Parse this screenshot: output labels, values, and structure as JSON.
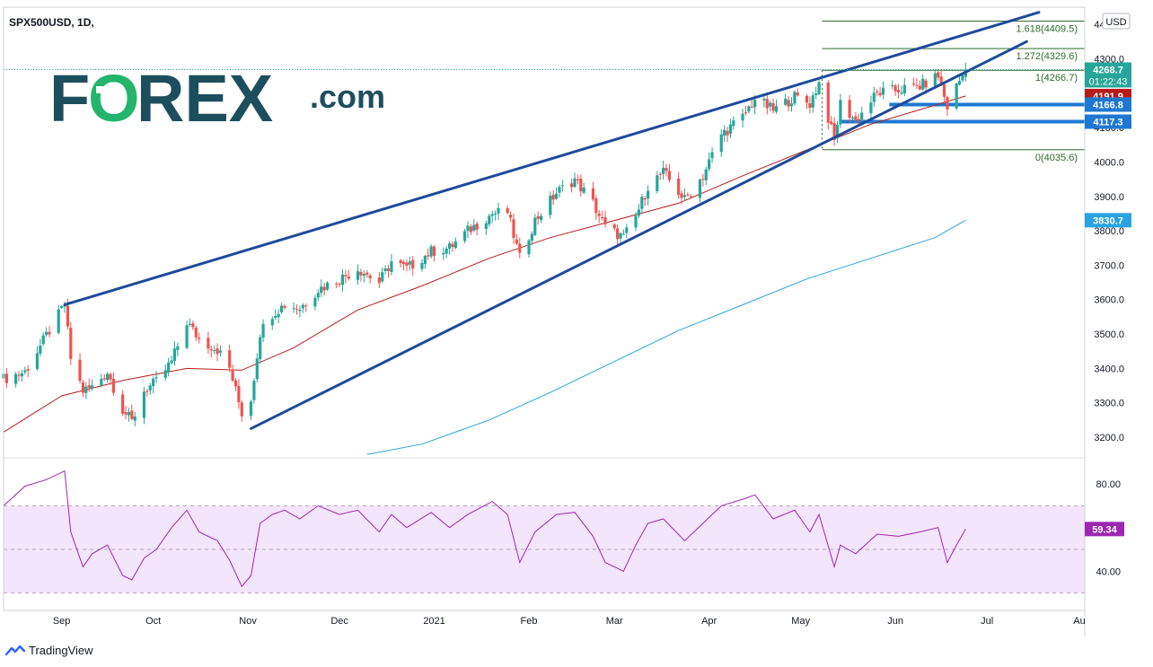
{
  "header": {
    "symbol": "SPX500USD, 1D,",
    "currency": "USD"
  },
  "branding": {
    "logo_prefix": "F",
    "logo_o": "O",
    "logo_suffix": "REX",
    "logo_dotcom": ".com",
    "logo_color": "#1d4e5e",
    "logo_accent": "#23b56d",
    "footer": "TradingView"
  },
  "colors": {
    "up": "#26a69a",
    "down": "#ef5350",
    "ma50": "#b71c1c",
    "ma200": "#29a3e0",
    "channel": "#1e4a9c",
    "fib": "#2e6b2e",
    "hline": "#1e78d2",
    "rsi": "#9c27b0",
    "rsi_band": "#f3e5fb"
  },
  "chart_data": {
    "type": "candlestick",
    "x_labels": [
      {
        "label": "Sep",
        "date": "2020-09-01"
      },
      {
        "label": "Oct",
        "date": "2020-10-01"
      },
      {
        "label": "Nov",
        "date": "2020-11-01"
      },
      {
        "label": "Dec",
        "date": "2020-12-01"
      },
      {
        "label": "2021",
        "date": "2021-01-01"
      },
      {
        "label": "Feb",
        "date": "2021-02-01"
      },
      {
        "label": "Mar",
        "date": "2021-03-01"
      },
      {
        "label": "Apr",
        "date": "2021-04-01"
      },
      {
        "label": "May",
        "date": "2021-05-01"
      },
      {
        "label": "Jun",
        "date": "2021-06-01"
      },
      {
        "label": "Jul",
        "date": "2021-07-01"
      },
      {
        "label": "Au",
        "date": "2021-08-01"
      }
    ],
    "x_range": [
      "2020-08-13",
      "2021-08-02"
    ],
    "price_axis": {
      "ylim": [
        3140,
        4450
      ],
      "ticks": [
        "3200.0",
        "3300.0",
        "3400.0",
        "3500.0",
        "3600.0",
        "3700.0",
        "3800.0",
        "3900.0",
        "4000.0",
        "4100.0",
        "4200.0",
        "4300.0",
        "4400.0"
      ]
    },
    "rsi_axis": {
      "ylim": [
        22,
        92
      ],
      "ticks": [
        "40.00",
        "80.00"
      ],
      "band": [
        30,
        70
      ],
      "midline": 50
    },
    "price_path": [
      [
        "2020-08-13",
        3370
      ],
      [
        "2020-08-20",
        3390
      ],
      [
        "2020-08-27",
        3495
      ],
      [
        "2020-09-02",
        3585
      ],
      [
        "2020-09-04",
        3430
      ],
      [
        "2020-09-08",
        3335
      ],
      [
        "2020-09-11",
        3345
      ],
      [
        "2020-09-16",
        3390
      ],
      [
        "2020-09-21",
        3280
      ],
      [
        "2020-09-24",
        3245
      ],
      [
        "2020-09-28",
        3335
      ],
      [
        "2020-10-02",
        3360
      ],
      [
        "2020-10-07",
        3420
      ],
      [
        "2020-10-12",
        3535
      ],
      [
        "2020-10-16",
        3485
      ],
      [
        "2020-10-22",
        3455
      ],
      [
        "2020-10-26",
        3400
      ],
      [
        "2020-10-30",
        3270
      ],
      [
        "2020-11-02",
        3310
      ],
      [
        "2020-11-05",
        3505
      ],
      [
        "2020-11-09",
        3560
      ],
      [
        "2020-11-13",
        3585
      ],
      [
        "2020-11-18",
        3575
      ],
      [
        "2020-11-24",
        3630
      ],
      [
        "2020-12-01",
        3660
      ],
      [
        "2020-12-07",
        3690
      ],
      [
        "2020-12-14",
        3650
      ],
      [
        "2020-12-18",
        3710
      ],
      [
        "2020-12-23",
        3690
      ],
      [
        "2020-12-31",
        3740
      ],
      [
        "2021-01-06",
        3750
      ],
      [
        "2021-01-12",
        3800
      ],
      [
        "2021-01-20",
        3850
      ],
      [
        "2021-01-25",
        3855
      ],
      [
        "2021-01-29",
        3720
      ],
      [
        "2021-02-03",
        3830
      ],
      [
        "2021-02-10",
        3910
      ],
      [
        "2021-02-16",
        3950
      ],
      [
        "2021-02-22",
        3880
      ],
      [
        "2021-02-26",
        3810
      ],
      [
        "2021-03-04",
        3780
      ],
      [
        "2021-03-08",
        3840
      ],
      [
        "2021-03-12",
        3930
      ],
      [
        "2021-03-17",
        3970
      ],
      [
        "2021-03-24",
        3890
      ],
      [
        "2021-03-30",
        3960
      ],
      [
        "2021-04-05",
        4080
      ],
      [
        "2021-04-12",
        4130
      ],
      [
        "2021-04-16",
        4185
      ],
      [
        "2021-04-22",
        4150
      ],
      [
        "2021-04-29",
        4190
      ],
      [
        "2021-05-04",
        4170
      ],
      [
        "2021-05-07",
        4230
      ],
      [
        "2021-05-12",
        4060
      ],
      [
        "2021-05-14",
        4170
      ],
      [
        "2021-05-19",
        4120
      ],
      [
        "2021-05-26",
        4200
      ],
      [
        "2021-06-02",
        4210
      ],
      [
        "2021-06-09",
        4220
      ],
      [
        "2021-06-15",
        4250
      ],
      [
        "2021-06-18",
        4160
      ],
      [
        "2021-06-21",
        4220
      ],
      [
        "2021-06-24",
        4268.7
      ]
    ],
    "ma50_path": [
      [
        "2020-08-13",
        3215
      ],
      [
        "2020-09-01",
        3320
      ],
      [
        "2020-09-21",
        3365
      ],
      [
        "2020-10-12",
        3400
      ],
      [
        "2020-10-30",
        3395
      ],
      [
        "2020-11-16",
        3460
      ],
      [
        "2020-12-07",
        3570
      ],
      [
        "2020-12-28",
        3640
      ],
      [
        "2021-01-19",
        3720
      ],
      [
        "2021-02-08",
        3780
      ],
      [
        "2021-03-01",
        3830
      ],
      [
        "2021-03-22",
        3880
      ],
      [
        "2021-04-12",
        3960
      ],
      [
        "2021-05-03",
        4035
      ],
      [
        "2021-05-24",
        4110
      ],
      [
        "2021-06-14",
        4165
      ],
      [
        "2021-06-24",
        4191.9
      ]
    ],
    "ma200_path": [
      [
        "2020-12-10",
        3150
      ],
      [
        "2020-12-28",
        3180
      ],
      [
        "2021-01-19",
        3250
      ],
      [
        "2021-02-08",
        3330
      ],
      [
        "2021-03-01",
        3420
      ],
      [
        "2021-03-22",
        3510
      ],
      [
        "2021-04-12",
        3585
      ],
      [
        "2021-05-03",
        3660
      ],
      [
        "2021-05-24",
        3720
      ],
      [
        "2021-06-14",
        3780
      ],
      [
        "2021-06-24",
        3830.7
      ]
    ],
    "rsi_path": [
      [
        "2020-08-13",
        70
      ],
      [
        "2020-08-20",
        79
      ],
      [
        "2020-08-27",
        82
      ],
      [
        "2020-09-02",
        86
      ],
      [
        "2020-09-04",
        58
      ],
      [
        "2020-09-08",
        42
      ],
      [
        "2020-09-11",
        48
      ],
      [
        "2020-09-16",
        52
      ],
      [
        "2020-09-21",
        38
      ],
      [
        "2020-09-24",
        36
      ],
      [
        "2020-09-28",
        46
      ],
      [
        "2020-10-02",
        50
      ],
      [
        "2020-10-07",
        60
      ],
      [
        "2020-10-12",
        68
      ],
      [
        "2020-10-16",
        58
      ],
      [
        "2020-10-22",
        54
      ],
      [
        "2020-10-26",
        45
      ],
      [
        "2020-10-30",
        33
      ],
      [
        "2020-11-02",
        38
      ],
      [
        "2020-11-05",
        62
      ],
      [
        "2020-11-09",
        66
      ],
      [
        "2020-11-13",
        68
      ],
      [
        "2020-11-18",
        64
      ],
      [
        "2020-11-24",
        70
      ],
      [
        "2020-12-01",
        66
      ],
      [
        "2020-12-07",
        68
      ],
      [
        "2020-12-14",
        58
      ],
      [
        "2020-12-18",
        66
      ],
      [
        "2020-12-23",
        60
      ],
      [
        "2020-12-31",
        67
      ],
      [
        "2021-01-06",
        60
      ],
      [
        "2021-01-12",
        66
      ],
      [
        "2021-01-20",
        72
      ],
      [
        "2021-01-25",
        66
      ],
      [
        "2021-01-29",
        44
      ],
      [
        "2021-02-03",
        58
      ],
      [
        "2021-02-10",
        66
      ],
      [
        "2021-02-16",
        67
      ],
      [
        "2021-02-22",
        56
      ],
      [
        "2021-02-26",
        44
      ],
      [
        "2021-03-04",
        40
      ],
      [
        "2021-03-08",
        52
      ],
      [
        "2021-03-12",
        62
      ],
      [
        "2021-03-17",
        64
      ],
      [
        "2021-03-24",
        54
      ],
      [
        "2021-03-30",
        62
      ],
      [
        "2021-04-05",
        70
      ],
      [
        "2021-04-12",
        73
      ],
      [
        "2021-04-16",
        75
      ],
      [
        "2021-04-22",
        64
      ],
      [
        "2021-04-29",
        68
      ],
      [
        "2021-05-04",
        58
      ],
      [
        "2021-05-07",
        66
      ],
      [
        "2021-05-12",
        42
      ],
      [
        "2021-05-14",
        52
      ],
      [
        "2021-05-19",
        48
      ],
      [
        "2021-05-26",
        57
      ],
      [
        "2021-06-02",
        56
      ],
      [
        "2021-06-09",
        58
      ],
      [
        "2021-06-15",
        60
      ],
      [
        "2021-06-18",
        44
      ],
      [
        "2021-06-21",
        52
      ],
      [
        "2021-06-24",
        59.34
      ]
    ],
    "channel_lines": [
      {
        "name": "upper",
        "from": [
          "2020-09-02",
          3585
        ],
        "to": [
          "2021-07-18",
          4435
        ]
      },
      {
        "name": "lower",
        "from": [
          "2020-11-02",
          3225
        ],
        "to": [
          "2021-07-14",
          4350
        ]
      }
    ],
    "fib_levels": [
      {
        "label": "1.618(4409.5)",
        "value": 4409.5,
        "from": "2021-05-08"
      },
      {
        "label": "1.272(4329.6)",
        "value": 4329.6,
        "from": "2021-05-08"
      },
      {
        "label": "1(4266.7)",
        "value": 4266.7,
        "from": "2021-05-08"
      },
      {
        "label": "0(4035.6)",
        "value": 4035.6,
        "from": "2021-05-08"
      }
    ],
    "horizontal_lines": [
      {
        "value": 4166.8,
        "from": "2021-05-30"
      },
      {
        "value": 4117.3,
        "from": "2021-05-14"
      }
    ],
    "price_labels": [
      {
        "text": "4268.7",
        "value": 4268.7,
        "color": "#26a69a",
        "time": "01:22:43"
      },
      {
        "text": "4191.9",
        "value": 4191.9,
        "color": "#b71c1c"
      },
      {
        "text": "4166.8",
        "value": 4166.8,
        "color": "#1e78d2"
      },
      {
        "text": "4117.3",
        "value": 4117.3,
        "color": "#1e78d2"
      },
      {
        "text": "3830.7",
        "value": 3830.7,
        "color": "#29a3e0"
      }
    ],
    "rsi_label": {
      "text": "59.34",
      "value": 59.34
    }
  }
}
